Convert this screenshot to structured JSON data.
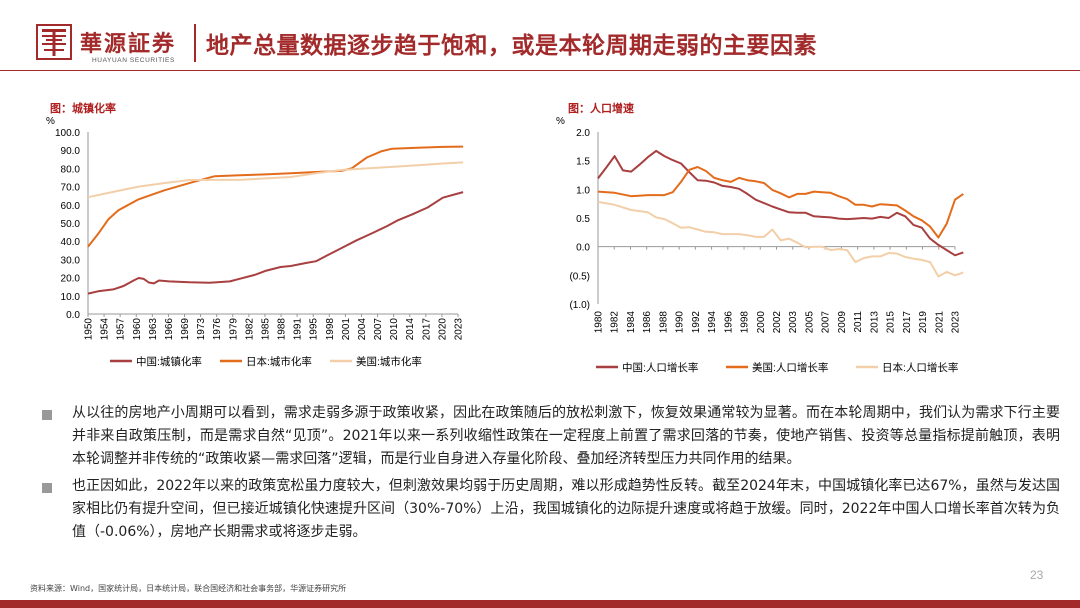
{
  "header": {
    "logo_cn": "華源証券",
    "logo_en": "HUAYUAN SECURITIES",
    "title": "地产总量数据逐步趋于饱和，或是本轮周期走弱的主要因素"
  },
  "colors": {
    "brand": "#a32a2a",
    "china": "#a83f40",
    "japan": "#e36c1c",
    "usa": "#f3cfa9"
  },
  "charts": [
    {
      "label": "图：城镇化率",
      "chart_data": {
        "type": "line",
        "unit": "%",
        "ylim": [
          0,
          100
        ],
        "y_ticks": [
          "100.0",
          "90.0",
          "80.0",
          "70.0",
          "60.0",
          "50.0",
          "40.0",
          "30.0",
          "20.0",
          "10.0",
          "0.0"
        ],
        "x_ticks": [
          "1950",
          "1954",
          "1957",
          "1960",
          "1963",
          "1966",
          "1969",
          "1973",
          "1976",
          "1979",
          "1982",
          "1985",
          "1988",
          "1991",
          "1995",
          "1998",
          "2001",
          "2004",
          "2007",
          "2010",
          "2014",
          "2017",
          "2020",
          "2023"
        ],
        "series": [
          {
            "name": "中国:城镇化率",
            "points": [
              [
                1950,
                11.2
              ],
              [
                1952,
                12.5
              ],
              [
                1955,
                13.5
              ],
              [
                1957,
                15.4
              ],
              [
                1959,
                18.4
              ],
              [
                1960,
                19.8
              ],
              [
                1961,
                19.3
              ],
              [
                1962,
                17.3
              ],
              [
                1963,
                16.8
              ],
              [
                1964,
                18.4
              ],
              [
                1966,
                17.9
              ],
              [
                1970,
                17.4
              ],
              [
                1974,
                17.2
              ],
              [
                1978,
                17.9
              ],
              [
                1980,
                19.4
              ],
              [
                1983,
                21.6
              ],
              [
                1985,
                23.7
              ],
              [
                1988,
                25.8
              ],
              [
                1990,
                26.4
              ],
              [
                1993,
                28
              ],
              [
                1995,
                29
              ],
              [
                1997,
                31.9
              ],
              [
                2000,
                36.2
              ],
              [
                2003,
                40.5
              ],
              [
                2006,
                44.3
              ],
              [
                2009,
                48.3
              ],
              [
                2011,
                51.3
              ],
              [
                2014,
                54.8
              ],
              [
                2017,
                58.5
              ],
              [
                2020,
                63.9
              ],
              [
                2023,
                66.2
              ],
              [
                2024,
                67
              ]
            ]
          },
          {
            "name": "日本:城市化率",
            "points": [
              [
                1950,
                37
              ],
              [
                1952,
                44
              ],
              [
                1954,
                52
              ],
              [
                1956,
                57
              ],
              [
                1958,
                60
              ],
              [
                1960,
                63
              ],
              [
                1965,
                67.9
              ],
              [
                1970,
                71.9
              ],
              [
                1975,
                75.7
              ],
              [
                1980,
                76.2
              ],
              [
                1985,
                76.7
              ],
              [
                1990,
                77.3
              ],
              [
                1995,
                78
              ],
              [
                2000,
                78.6
              ],
              [
                2002,
                80
              ],
              [
                2005,
                86
              ],
              [
                2008,
                89.5
              ],
              [
                2010,
                90.8
              ],
              [
                2015,
                91.4
              ],
              [
                2020,
                91.8
              ],
              [
                2024,
                92
              ]
            ]
          },
          {
            "name": "美国:城市化率",
            "points": [
              [
                1950,
                64.2
              ],
              [
                1955,
                67.1
              ],
              [
                1960,
                70
              ],
              [
                1965,
                71.9
              ],
              [
                1970,
                73.6
              ],
              [
                1975,
                73.7
              ],
              [
                1980,
                73.7
              ],
              [
                1985,
                74.5
              ],
              [
                1990,
                75.3
              ],
              [
                1995,
                77.3
              ],
              [
                2000,
                79.1
              ],
              [
                2005,
                80
              ],
              [
                2010,
                80.8
              ],
              [
                2015,
                81.7
              ],
              [
                2020,
                82.7
              ],
              [
                2024,
                83.3
              ]
            ]
          }
        ]
      }
    },
    {
      "label": "图：人口增速",
      "chart_data": {
        "type": "line",
        "unit": "%",
        "ylim": [
          -1.0,
          2.0
        ],
        "y_ticks": [
          "2.0",
          "1.5",
          "1.0",
          "0.5",
          "0.0",
          "(0.5)",
          "(1.0)"
        ],
        "x_ticks": [
          "1980",
          "1982",
          "1984",
          "1986",
          "1988",
          "1990",
          "1992",
          "1994",
          "1996",
          "1998",
          "2000",
          "2002",
          "2003",
          "2005",
          "2007",
          "2009",
          "2011",
          "2013",
          "2015",
          "2017",
          "2019",
          "2021",
          "2023"
        ],
        "series": [
          {
            "name": "中国:人口增长率",
            "points": [
              [
                1980,
                1.19
              ],
              [
                1981,
                1.38
              ],
              [
                1982,
                1.58
              ],
              [
                1983,
                1.33
              ],
              [
                1984,
                1.31
              ],
              [
                1985,
                1.43
              ],
              [
                1986,
                1.56
              ],
              [
                1987,
                1.67
              ],
              [
                1988,
                1.58
              ],
              [
                1989,
                1.51
              ],
              [
                1990,
                1.45
              ],
              [
                1991,
                1.3
              ],
              [
                1992,
                1.16
              ],
              [
                1993,
                1.15
              ],
              [
                1994,
                1.12
              ],
              [
                1995,
                1.06
              ],
              [
                1996,
                1.04
              ],
              [
                1997,
                1.01
              ],
              [
                1998,
                0.92
              ],
              [
                1999,
                0.82
              ],
              [
                2000,
                0.76
              ],
              [
                2001,
                0.7
              ],
              [
                2002,
                0.65
              ],
              [
                2003,
                0.6
              ],
              [
                2004,
                0.59
              ],
              [
                2005,
                0.59
              ],
              [
                2006,
                0.53
              ],
              [
                2007,
                0.52
              ],
              [
                2008,
                0.51
              ],
              [
                2009,
                0.49
              ],
              [
                2010,
                0.48
              ],
              [
                2011,
                0.49
              ],
              [
                2012,
                0.5
              ],
              [
                2013,
                0.49
              ],
              [
                2014,
                0.52
              ],
              [
                2015,
                0.5
              ],
              [
                2016,
                0.59
              ],
              [
                2017,
                0.53
              ],
              [
                2018,
                0.38
              ],
              [
                2019,
                0.33
              ],
              [
                2020,
                0.14
              ],
              [
                2021,
                0.03
              ],
              [
                2022,
                -0.06
              ],
              [
                2023,
                -0.15
              ],
              [
                2024,
                -0.1
              ]
            ]
          },
          {
            "name": "美国:人口增长率",
            "points": [
              [
                1980,
                0.96
              ],
              [
                1982,
                0.94
              ],
              [
                1984,
                0.88
              ],
              [
                1986,
                0.9
              ],
              [
                1988,
                0.9
              ],
              [
                1989,
                0.95
              ],
              [
                1990,
                1.13
              ],
              [
                1991,
                1.34
              ],
              [
                1992,
                1.39
              ],
              [
                1993,
                1.32
              ],
              [
                1994,
                1.2
              ],
              [
                1995,
                1.16
              ],
              [
                1996,
                1.13
              ],
              [
                1997,
                1.2
              ],
              [
                1998,
                1.16
              ],
              [
                1999,
                1.14
              ],
              [
                2000,
                1.11
              ],
              [
                2001,
                0.99
              ],
              [
                2002,
                0.93
              ],
              [
                2003,
                0.86
              ],
              [
                2004,
                0.92
              ],
              [
                2005,
                0.92
              ],
              [
                2006,
                0.96
              ],
              [
                2007,
                0.95
              ],
              [
                2008,
                0.94
              ],
              [
                2009,
                0.88
              ],
              [
                2010,
                0.83
              ],
              [
                2011,
                0.73
              ],
              [
                2012,
                0.73
              ],
              [
                2013,
                0.7
              ],
              [
                2014,
                0.74
              ],
              [
                2015,
                0.73
              ],
              [
                2016,
                0.72
              ],
              [
                2017,
                0.63
              ],
              [
                2018,
                0.53
              ],
              [
                2019,
                0.46
              ],
              [
                2020,
                0.35
              ],
              [
                2021,
                0.16
              ],
              [
                2022,
                0.4
              ],
              [
                2023,
                0.82
              ],
              [
                2024,
                0.92
              ]
            ]
          },
          {
            "name": "日本:人口增长率",
            "points": [
              [
                1980,
                0.78
              ],
              [
                1982,
                0.73
              ],
              [
                1984,
                0.64
              ],
              [
                1986,
                0.6
              ],
              [
                1987,
                0.51
              ],
              [
                1988,
                0.48
              ],
              [
                1989,
                0.41
              ],
              [
                1990,
                0.33
              ],
              [
                1991,
                0.34
              ],
              [
                1992,
                0.3
              ],
              [
                1993,
                0.26
              ],
              [
                1994,
                0.25
              ],
              [
                1995,
                0.22
              ],
              [
                1996,
                0.22
              ],
              [
                1997,
                0.22
              ],
              [
                1998,
                0.2
              ],
              [
                1999,
                0.17
              ],
              [
                2000,
                0.17
              ],
              [
                2001,
                0.3
              ],
              [
                2002,
                0.11
              ],
              [
                2003,
                0.14
              ],
              [
                2004,
                0.07
              ],
              [
                2005,
                -0.01
              ],
              [
                2006,
                0.0
              ],
              [
                2007,
                0.0
              ],
              [
                2008,
                -0.06
              ],
              [
                2009,
                -0.04
              ],
              [
                2010,
                -0.06
              ],
              [
                2011,
                -0.27
              ],
              [
                2012,
                -0.2
              ],
              [
                2013,
                -0.17
              ],
              [
                2014,
                -0.17
              ],
              [
                2015,
                -0.11
              ],
              [
                2016,
                -0.12
              ],
              [
                2017,
                -0.18
              ],
              [
                2018,
                -0.21
              ],
              [
                2019,
                -0.23
              ],
              [
                2020,
                -0.27
              ],
              [
                2021,
                -0.52
              ],
              [
                2022,
                -0.44
              ],
              [
                2023,
                -0.5
              ],
              [
                2024,
                -0.45
              ]
            ]
          }
        ]
      }
    }
  ],
  "bullets": [
    "从以往的房地产小周期可以看到，需求走弱多源于政策收紧，因此在政策随后的放松刺激下，恢复效果通常较为显著。而在本轮周期中，我们认为需求下行主要并非来自政策压制，而是需求自然“见顶”。2021年以来一系列收缩性政策在一定程度上前置了需求回落的节奏，使地产销售、投资等总量指标提前触顶，表明本轮调整并非传统的“政策收紧—需求回落”逻辑，而是行业自身进入存量化阶段、叠加经济转型压力共同作用的结果。",
    "也正因如此，2022年以来的政策宽松虽力度较大，但刺激效果均弱于历史周期，难以形成趋势性反转。截至2024年末，中国城镇化率已达67%，虽然与发达国家相比仍有提升空间，但已接近城镇化快速提升区间（30%-70%）上沿，我国城镇化的边际提升速度或将趋于放缓。同时，2022年中国人口增长率首次转为负值（-0.06%），房地产长期需求或将逐步走弱。"
  ],
  "footer": {
    "source": "资料来源：Wind，国家统计局，日本统计局，联合国经济和社会事务部，华源证券研究所",
    "page": "23"
  }
}
